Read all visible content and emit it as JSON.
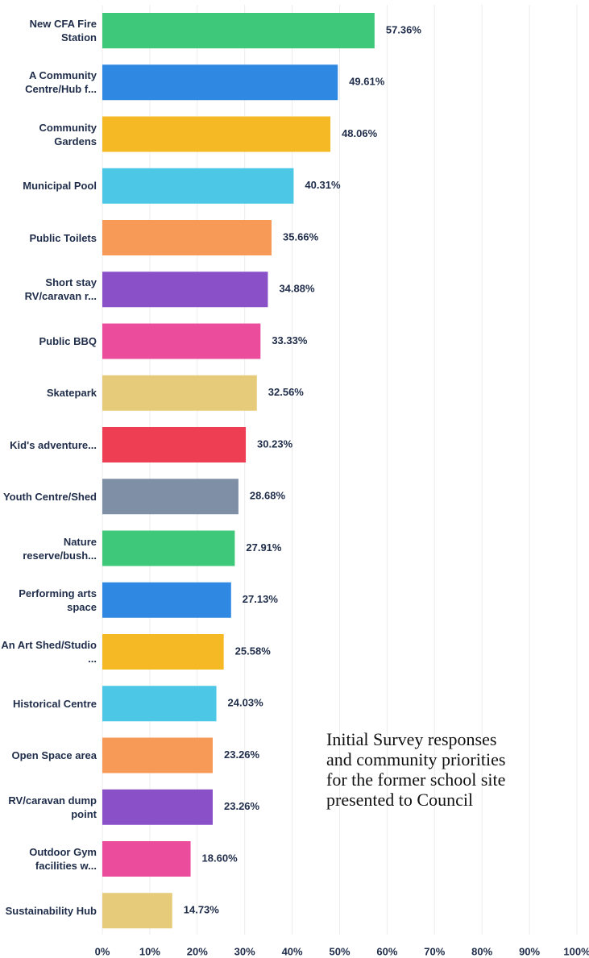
{
  "chart_data": {
    "type": "bar",
    "orientation": "horizontal",
    "categories": [
      "New CFA Fire Station",
      "A Community Centre/Hub f...",
      "Community Gardens",
      "Municipal Pool",
      "Public Toilets",
      "Short stay RV/caravan r...",
      "Public BBQ",
      "Skatepark",
      "Kid's adventure...",
      "Youth Centre/Shed",
      "Nature reserve/bush...",
      "Performing arts space",
      "An Art Shed/Studio ...",
      "Historical Centre",
      "Open Space area",
      "RV/caravan dump point",
      "Outdoor Gym facilities w...",
      "Sustainability Hub"
    ],
    "values": [
      57.36,
      49.61,
      48.06,
      40.31,
      35.66,
      34.88,
      33.33,
      32.56,
      30.23,
      28.68,
      27.91,
      27.13,
      25.58,
      24.03,
      23.26,
      23.26,
      18.6,
      14.73
    ],
    "value_labels": [
      "57.36%",
      "49.61%",
      "48.06%",
      "40.31%",
      "35.66%",
      "34.88%",
      "33.33%",
      "32.56%",
      "30.23%",
      "28.68%",
      "27.91%",
      "27.13%",
      "25.58%",
      "24.03%",
      "23.26%",
      "23.26%",
      "18.60%",
      "14.73%"
    ],
    "colors": [
      "#3ec97a",
      "#2f88e2",
      "#f6b926",
      "#4dc7e6",
      "#f79a58",
      "#8a50c8",
      "#ec4c9c",
      "#e6cc7a",
      "#ee3e54",
      "#7f8fa5",
      "#3ec97a",
      "#2f88e2",
      "#f6b926",
      "#4dc7e6",
      "#f79a58",
      "#8a50c8",
      "#ec4c9c",
      "#e6cc7a"
    ],
    "xlim": [
      0,
      100
    ],
    "xticks": [
      {
        "value": 0,
        "label": "0%"
      },
      {
        "value": 10,
        "label": "10%"
      },
      {
        "value": 20,
        "label": "20%"
      },
      {
        "value": 30,
        "label": "30%"
      },
      {
        "value": 40,
        "label": "40%"
      },
      {
        "value": 50,
        "label": "50%"
      },
      {
        "value": 60,
        "label": "60%"
      },
      {
        "value": 70,
        "label": "70%"
      },
      {
        "value": 80,
        "label": "80%"
      },
      {
        "value": 90,
        "label": "90%"
      },
      {
        "value": 100,
        "label": "100%"
      }
    ],
    "grid": true,
    "annotation": [
      "Initial Survey responses",
      "and community priorities",
      "for the former school site",
      "presented to Council"
    ]
  }
}
